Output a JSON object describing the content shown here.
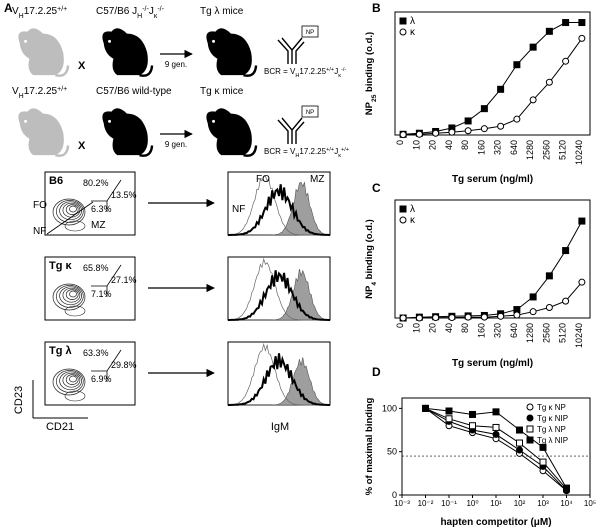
{
  "panel_labels": [
    "A",
    "B",
    "C",
    "D"
  ],
  "panel_a": {
    "crosses": [
      {
        "parent1": [
          "V",
          "H",
          "17.2.25",
          "+/+"
        ],
        "cross": "X",
        "parent2": [
          "C57/B6 J",
          "H",
          "-/-",
          "J",
          "κ",
          "-/-"
        ],
        "generations": "9 gen.",
        "offspring": "Tg λ mice",
        "antigen": "NP",
        "bcr": [
          "BCR = V",
          "H",
          "17.2.25",
          "+/+",
          "J",
          "κ",
          "-/-"
        ]
      },
      {
        "parent1": [
          "V",
          "H",
          "17.2.25",
          "+/+"
        ],
        "cross": "X",
        "parent2": [
          "C57/B6 wild-type"
        ],
        "generations": "9 gen.",
        "offspring": "Tg κ mice",
        "antigen": "NP",
        "bcr": [
          "BCR = V",
          "H",
          "17.2.25",
          "+/+",
          "J",
          "κ",
          "+/+"
        ]
      }
    ],
    "flow": [
      {
        "label": "B6",
        "gates": [
          "80.2%",
          "13.5%",
          "6.3%"
        ],
        "populations": [
          "FO",
          "MZ",
          "NF"
        ]
      },
      {
        "label": "Tg κ",
        "gates": [
          "65.8%",
          "27.1%",
          "7.1%"
        ]
      },
      {
        "label": "Tg λ",
        "gates": [
          "63.3%",
          "29.8%",
          "6.9%"
        ]
      }
    ],
    "histogram_labels": [
      "FO",
      "MZ",
      "NF"
    ],
    "axis_labels": {
      "flow_y": "CD23",
      "flow_x": "CD21",
      "histogram_x": "IgM"
    }
  },
  "chart_data": [
    {
      "type": "line",
      "ylabel": [
        "NP",
        "25",
        " binding (o.d.)"
      ],
      "xlabel": "Tg serum (ng/ml)",
      "categories": [
        "0",
        "10",
        "20",
        "40",
        "80",
        "160",
        "320",
        "640",
        "1280",
        "2560",
        "5120",
        "10240"
      ],
      "ylim": [
        0,
        3.5
      ],
      "legend": "upper left",
      "series": [
        {
          "name": "λ",
          "color": "#000000",
          "marker": "square",
          "filled": true,
          "values": [
            0.02,
            0.05,
            0.1,
            0.2,
            0.4,
            0.75,
            1.3,
            2.0,
            2.5,
            2.95,
            3.2,
            3.2
          ]
        },
        {
          "name": "κ",
          "color": "#000000",
          "marker": "circle",
          "filled": false,
          "values": [
            0.01,
            0.02,
            0.05,
            0.08,
            0.12,
            0.18,
            0.25,
            0.45,
            1.0,
            1.5,
            2.1,
            2.75
          ]
        }
      ]
    },
    {
      "type": "line",
      "ylabel": [
        "NP",
        "4",
        " binding (o.d.)"
      ],
      "xlabel": "Tg serum (ng/ml)",
      "categories": [
        "0",
        "10",
        "20",
        "40",
        "80",
        "160",
        "320",
        "640",
        "1280",
        "2560",
        "5120",
        "10240"
      ],
      "ylim": [
        0,
        2.8
      ],
      "legend": "upper left",
      "series": [
        {
          "name": "λ",
          "color": "#000000",
          "marker": "square",
          "filled": true,
          "values": [
            0.0,
            0.02,
            0.03,
            0.04,
            0.05,
            0.06,
            0.1,
            0.2,
            0.5,
            1.0,
            1.6,
            2.3
          ]
        },
        {
          "name": "κ",
          "color": "#000000",
          "marker": "circle",
          "filled": false,
          "values": [
            0.0,
            0.0,
            0.01,
            0.01,
            0.02,
            0.02,
            0.04,
            0.07,
            0.15,
            0.25,
            0.4,
            0.85
          ]
        }
      ]
    },
    {
      "type": "line",
      "xscale": "log",
      "ylabel": "% of maximal binding",
      "xlabel": "hapten competitor (μM)",
      "x": [
        0.01,
        0.1,
        1,
        10,
        100,
        1000,
        10000
      ],
      "xlim": [
        0.001,
        100000
      ],
      "xticks": [
        {
          "value": 0.001,
          "label": "10⁻³"
        },
        {
          "value": 0.01,
          "label": "10⁻²"
        },
        {
          "value": 0.1,
          "label": "10⁻¹"
        },
        {
          "value": 1,
          "label": "10⁰"
        },
        {
          "value": 10,
          "label": "10¹"
        },
        {
          "value": 100,
          "label": "10²"
        },
        {
          "value": 1000,
          "label": "10³"
        },
        {
          "value": 10000,
          "label": "10⁴"
        },
        {
          "value": 100000,
          "label": "10⁵"
        }
      ],
      "ylim": [
        0,
        112
      ],
      "yticks": [
        0,
        50,
        100
      ],
      "hline": 45,
      "legend": "upper right",
      "series": [
        {
          "name": "Tg κ NP",
          "color": "#000000",
          "marker": "circle",
          "filled": false,
          "values": [
            100,
            80,
            72,
            65,
            48,
            28,
            5
          ]
        },
        {
          "name": "Tg κ NIP",
          "color": "#000000",
          "marker": "circle",
          "filled": true,
          "values": [
            100,
            85,
            75,
            70,
            52,
            33,
            5
          ]
        },
        {
          "name": "Tg λ NP",
          "color": "#000000",
          "marker": "square",
          "filled": false,
          "values": [
            100,
            88,
            80,
            78,
            60,
            38,
            7
          ]
        },
        {
          "name": "Tg λ NIP",
          "color": "#000000",
          "marker": "square",
          "filled": true,
          "values": [
            100,
            97,
            93,
            96,
            75,
            55,
            8
          ]
        }
      ]
    }
  ]
}
